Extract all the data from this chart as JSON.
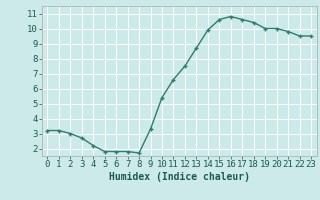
{
  "x": [
    0,
    1,
    2,
    3,
    4,
    5,
    6,
    7,
    8,
    9,
    10,
    11,
    12,
    13,
    14,
    15,
    16,
    17,
    18,
    19,
    20,
    21,
    22,
    23
  ],
  "y": [
    3.2,
    3.2,
    3.0,
    2.7,
    2.2,
    1.8,
    1.8,
    1.8,
    1.7,
    3.3,
    5.4,
    6.6,
    7.5,
    8.7,
    9.9,
    10.6,
    10.8,
    10.6,
    10.4,
    10.0,
    10.0,
    9.8,
    9.5,
    9.5
  ],
  "line_color": "#2e7d6e",
  "marker": "+",
  "marker_size": 3,
  "linewidth": 1.0,
  "xlabel": "Humidex (Indice chaleur)",
  "xlim": [
    -0.5,
    23.5
  ],
  "ylim": [
    1.5,
    11.5
  ],
  "yticks": [
    2,
    3,
    4,
    5,
    6,
    7,
    8,
    9,
    10,
    11
  ],
  "xticks": [
    0,
    1,
    2,
    3,
    4,
    5,
    6,
    7,
    8,
    9,
    10,
    11,
    12,
    13,
    14,
    15,
    16,
    17,
    18,
    19,
    20,
    21,
    22,
    23
  ],
  "bg_color": "#cceaea",
  "grid_color": "#ffffff",
  "grid_linewidth": 0.7,
  "xlabel_fontsize": 7,
  "tick_fontsize": 6.5
}
